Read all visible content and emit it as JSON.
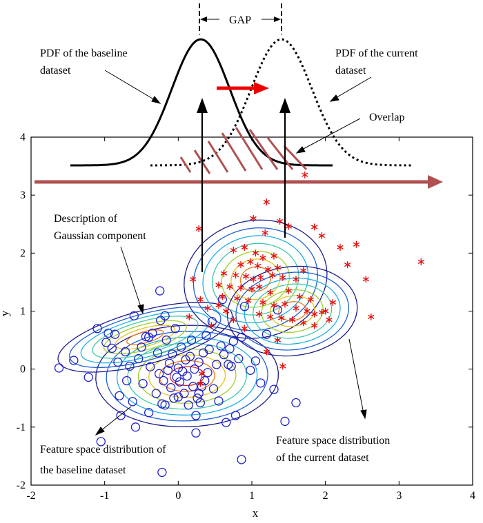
{
  "figure": {
    "gap_label": "GAP",
    "pdf_baseline_label": [
      "PDF of the baseline",
      "dataset"
    ],
    "pdf_current_label": [
      "PDF of the current",
      "dataset"
    ],
    "overlap_label": "Overlap",
    "gaussian_label": [
      "Description of",
      "Gaussian component"
    ],
    "baseline_dist_label": [
      "Feature space distribution of",
      "the baseline dataset"
    ],
    "current_dist_label": [
      "Feature space distribution",
      "of the current dataset"
    ]
  },
  "chart_data": {
    "type": "scatter",
    "title": "",
    "xlabel": "x",
    "ylabel": "y",
    "xlim": [
      -2,
      4
    ],
    "ylim": [
      -2,
      4
    ],
    "xticks": [
      "-2",
      "-1",
      "0",
      "1",
      "2",
      "3",
      "4"
    ],
    "yticks": [
      "-2",
      "-1",
      "0",
      "1",
      "2",
      "3",
      "4"
    ],
    "grid": false,
    "series": [
      {
        "marker": "circle",
        "color": "#1f1fd0",
        "points": [
          [
            -1.62,
            0.02
          ],
          [
            -1.42,
            0.15
          ],
          [
            -1.22,
            -0.14
          ],
          [
            -1.1,
            0.7
          ],
          [
            -0.98,
            0.46
          ],
          [
            -0.95,
            0.62
          ],
          [
            -0.9,
            0.36
          ],
          [
            -0.86,
            0.6
          ],
          [
            -0.82,
            0.12
          ],
          [
            -0.8,
            -0.46
          ],
          [
            -0.78,
            -0.8
          ],
          [
            -0.72,
            0.3
          ],
          [
            -0.7,
            -0.2
          ],
          [
            -0.66,
            0.05
          ],
          [
            -0.62,
            -0.56
          ],
          [
            -0.6,
            0.92
          ],
          [
            -0.58,
            -1.0
          ],
          [
            -0.54,
            0.18
          ],
          [
            -0.5,
            0.38
          ],
          [
            -0.48,
            -0.25
          ],
          [
            -0.44,
            0.56
          ],
          [
            -0.4,
            -0.75
          ],
          [
            -0.38,
            0.04
          ],
          [
            -0.35,
            0.62
          ],
          [
            -0.3,
            -0.42
          ],
          [
            -0.28,
            0.28
          ],
          [
            -0.26,
            -0.08
          ],
          [
            -0.24,
            0.84
          ],
          [
            -0.22,
            -0.6
          ],
          [
            -0.2,
            -0.2
          ],
          [
            -0.18,
            0.92
          ],
          [
            -0.16,
            0.5
          ],
          [
            -0.14,
            -0.02
          ],
          [
            -0.12,
            0.1
          ],
          [
            -0.1,
            -0.32
          ],
          [
            -0.08,
            0.26
          ],
          [
            -0.06,
            -0.5
          ],
          [
            -0.04,
            0.7
          ],
          [
            -0.02,
            -0.14
          ],
          [
            0.0,
            0.02
          ],
          [
            0.02,
            -0.22
          ],
          [
            0.04,
            0.38
          ],
          [
            0.06,
            -0.04
          ],
          [
            0.08,
            -0.42
          ],
          [
            0.1,
            0.16
          ],
          [
            0.12,
            -0.12
          ],
          [
            0.14,
            -0.62
          ],
          [
            0.16,
            0.22
          ],
          [
            0.18,
            0.5
          ],
          [
            0.2,
            -0.3
          ],
          [
            0.22,
            0.0
          ],
          [
            0.24,
            -0.8
          ],
          [
            0.26,
            -0.5
          ],
          [
            0.28,
            0.12
          ],
          [
            0.3,
            -0.58
          ],
          [
            0.32,
            -0.3
          ],
          [
            0.34,
            0.28
          ],
          [
            0.36,
            -0.2
          ],
          [
            0.38,
            0.58
          ],
          [
            0.4,
            -0.06
          ],
          [
            0.42,
            0.34
          ],
          [
            0.46,
            0.82
          ],
          [
            0.48,
            -0.34
          ],
          [
            0.52,
            0.08
          ],
          [
            0.55,
            -0.55
          ],
          [
            0.58,
            0.4
          ],
          [
            0.6,
            1.2
          ],
          [
            0.62,
            0.25
          ],
          [
            0.65,
            -0.92
          ],
          [
            0.68,
            0.08
          ],
          [
            0.7,
            0.35
          ],
          [
            0.72,
            0.05
          ],
          [
            0.75,
            0.48
          ],
          [
            0.78,
            -0.8
          ],
          [
            0.82,
            0.18
          ],
          [
            0.86,
            0.55
          ],
          [
            0.9,
            1.08
          ],
          [
            0.98,
            -0.02
          ],
          [
            1.05,
            0.14
          ],
          [
            1.12,
            -0.24
          ],
          [
            1.2,
            0.6
          ],
          [
            1.3,
            -0.35
          ],
          [
            1.35,
            1.02
          ],
          [
            1.45,
            -0.9
          ],
          [
            -0.25,
            1.35
          ],
          [
            -1.05,
            -1.25
          ],
          [
            -0.22,
            -1.78
          ],
          [
            0.86,
            -1.56
          ],
          [
            0.24,
            -1.1
          ],
          [
            1.6,
            -0.58
          ],
          [
            -0.18,
            -0.62
          ],
          [
            0.0,
            -0.48
          ],
          [
            0.28,
            -0.42
          ],
          [
            -0.4,
            0.55
          ]
        ]
      },
      {
        "marker": "asterisk",
        "color": "#e81010",
        "points": [
          [
            1.72,
            3.35
          ],
          [
            1.2,
            2.88
          ],
          [
            1.02,
            2.6
          ],
          [
            1.38,
            2.55
          ],
          [
            1.18,
            2.35
          ],
          [
            1.5,
            2.46
          ],
          [
            1.85,
            2.45
          ],
          [
            1.95,
            2.3
          ],
          [
            0.28,
            2.42
          ],
          [
            0.75,
            2.05
          ],
          [
            0.9,
            2.1
          ],
          [
            1.05,
            2.0
          ],
          [
            1.15,
            1.92
          ],
          [
            1.3,
            1.95
          ],
          [
            0.85,
            1.8
          ],
          [
            0.98,
            1.85
          ],
          [
            1.08,
            1.78
          ],
          [
            1.22,
            1.72
          ],
          [
            1.35,
            1.75
          ],
          [
            0.62,
            1.65
          ],
          [
            0.78,
            1.62
          ],
          [
            0.92,
            1.6
          ],
          [
            1.02,
            1.55
          ],
          [
            1.12,
            1.58
          ],
          [
            1.28,
            1.62
          ],
          [
            1.42,
            1.58
          ],
          [
            0.55,
            1.45
          ],
          [
            0.7,
            1.42
          ],
          [
            0.85,
            1.4
          ],
          [
            1.0,
            1.38
          ],
          [
            1.1,
            1.42
          ],
          [
            1.25,
            1.32
          ],
          [
            1.5,
            1.35
          ],
          [
            1.65,
            1.25
          ],
          [
            1.8,
            1.2
          ],
          [
            0.6,
            1.25
          ],
          [
            0.8,
            1.22
          ],
          [
            0.95,
            1.18
          ],
          [
            1.15,
            1.15
          ],
          [
            1.3,
            1.1
          ],
          [
            1.45,
            1.12
          ],
          [
            1.6,
            1.05
          ],
          [
            1.75,
            1.0
          ],
          [
            1.85,
            0.95
          ],
          [
            1.95,
            0.98
          ],
          [
            1.1,
            0.95
          ],
          [
            1.25,
            0.9
          ],
          [
            1.4,
            0.88
          ],
          [
            1.55,
            0.85
          ],
          [
            1.7,
            0.8
          ],
          [
            1.85,
            0.75
          ],
          [
            2.0,
            1.0
          ],
          [
            2.1,
            1.15
          ],
          [
            2.05,
            0.85
          ],
          [
            0.4,
            1.05
          ],
          [
            0.65,
            1.0
          ],
          [
            0.9,
            0.7
          ],
          [
            0.45,
            0.75
          ],
          [
            0.2,
            1.55
          ],
          [
            0.55,
            1.1
          ],
          [
            2.2,
            2.1
          ],
          [
            2.42,
            2.15
          ],
          [
            2.3,
            1.8
          ],
          [
            2.55,
            1.55
          ],
          [
            2.62,
            0.9
          ],
          [
            3.3,
            1.85
          ],
          [
            1.35,
            0.5
          ],
          [
            1.2,
            0.3
          ],
          [
            1.42,
            0.05
          ],
          [
            0.75,
            0.85
          ],
          [
            1.6,
            1.55
          ],
          [
            1.7,
            1.7
          ],
          [
            0.3,
            1.2
          ],
          [
            0.15,
            0.9
          ],
          [
            0.32,
            -0.08
          ],
          [
            0.3,
            -0.25
          ]
        ]
      }
    ]
  },
  "colors": {
    "circle": "#1f1fd0",
    "asterisk": "#e81010",
    "shift_arrow": "#b05050",
    "move_arrow": "#ee0000",
    "contours": [
      "#1a1a8c",
      "#1f5fd6",
      "#1ab0e6",
      "#3ec9a8",
      "#9fd02e",
      "#e3c31a",
      "#f07a18",
      "#d42020",
      "#8c1010"
    ]
  }
}
